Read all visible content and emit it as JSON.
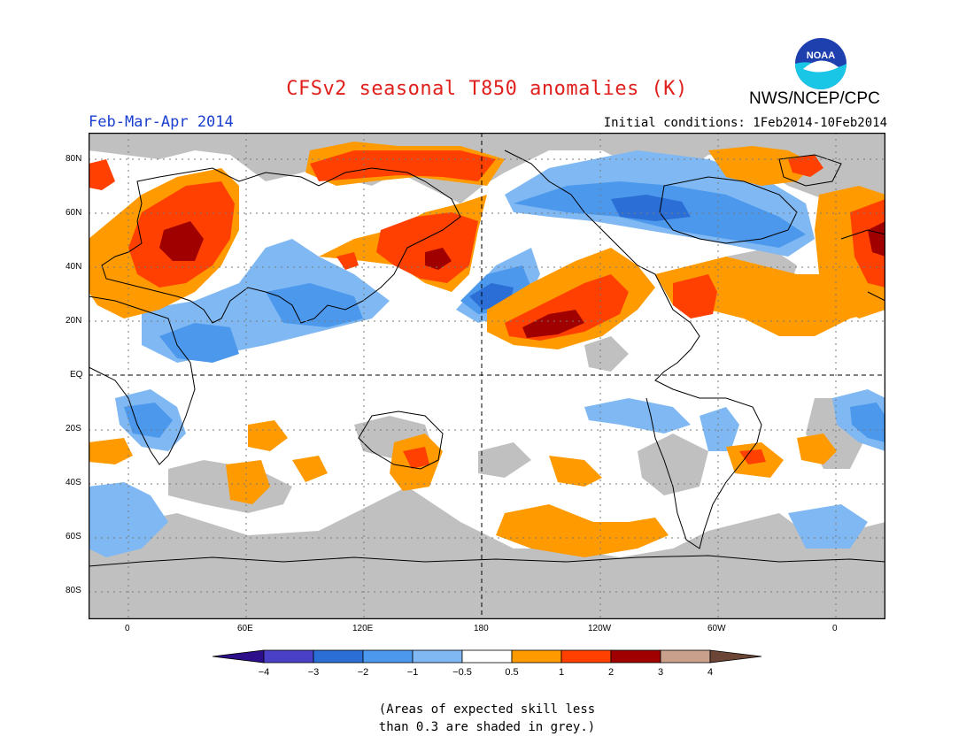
{
  "title": "CFSv2 seasonal T850 anomalies (K)",
  "org": "NWS/NCEP/CPC",
  "logo_text": "NOAA",
  "season": "Feb-Mar-Apr 2014",
  "initial_conditions": "Initial conditions: 1Feb2014-10Feb2014",
  "lat_labels": [
    "80N",
    "60N",
    "40N",
    "20N",
    "EQ",
    "20S",
    "40S",
    "60S",
    "80S"
  ],
  "lon_labels": [
    "0",
    "60E",
    "120E",
    "180",
    "120W",
    "60W",
    "0"
  ],
  "legend": {
    "colors": [
      "#2d0f8c",
      "#4a40c8",
      "#2b6fd6",
      "#4b98ec",
      "#7fb8f2",
      "#ffffff",
      "#ff9a00",
      "#ff4000",
      "#a00000",
      "#c9a08c",
      "#6b4636"
    ],
    "ticks": [
      "-4",
      "-3",
      "-2",
      "-1",
      "-0.5",
      "0.5",
      "1",
      "2",
      "3",
      "4"
    ]
  },
  "note": [
    "(Areas of expected skill less",
    "than 0.3 are shaded in grey.)"
  ],
  "colors": {
    "grey": "#c0c0c0",
    "title": "#e0201c",
    "season": "#1a3fd0"
  }
}
